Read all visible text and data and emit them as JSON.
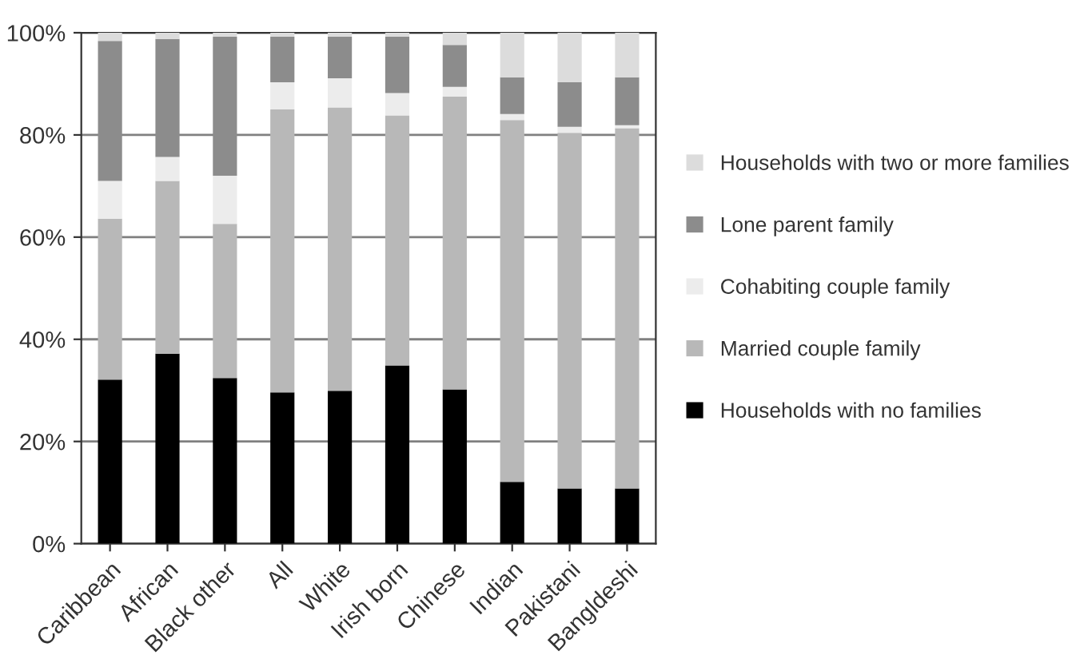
{
  "chart_data": {
    "type": "bar",
    "stacked": true,
    "categories": [
      "Caribbean",
      "African",
      "Black other",
      "All",
      "White",
      "Irish born",
      "Chinese",
      "Indian",
      "Pakistani",
      "Bangldeshi"
    ],
    "series": [
      {
        "name": "Households with no families",
        "color": "#000000",
        "values": [
          32.1,
          37.2,
          32.4,
          29.6,
          29.9,
          34.9,
          30.2,
          12.1,
          10.8,
          10.8
        ]
      },
      {
        "name": "Married couple family",
        "color": "#b8b8b8",
        "values": [
          31.5,
          33.8,
          30.2,
          55.4,
          55.5,
          48.9,
          57.3,
          70.8,
          69.6,
          70.5
        ]
      },
      {
        "name": "Cohabiting couple family",
        "color": "#ececec",
        "values": [
          7.4,
          4.7,
          9.4,
          5.3,
          5.7,
          4.4,
          1.9,
          1.2,
          1.2,
          0.6
        ]
      },
      {
        "name": "Lone parent family",
        "color": "#8c8c8c",
        "values": [
          27.4,
          23.1,
          27.2,
          8.9,
          8.1,
          11.0,
          8.2,
          7.2,
          8.7,
          9.4
        ]
      },
      {
        "name": "Households with two or more families",
        "color": "#dcdcdc",
        "values": [
          1.6,
          1.2,
          0.8,
          0.8,
          0.8,
          0.8,
          2.4,
          8.7,
          9.7,
          8.7
        ]
      }
    ],
    "ylim": [
      0,
      100
    ],
    "yticks": [
      {
        "value": 0,
        "label": "0%"
      },
      {
        "value": 20,
        "label": "20%"
      },
      {
        "value": 40,
        "label": "40%"
      },
      {
        "value": 60,
        "label": "60%"
      },
      {
        "value": 80,
        "label": "80%"
      },
      {
        "value": 100,
        "label": "100%"
      }
    ],
    "grid": "y",
    "legend": "right"
  }
}
